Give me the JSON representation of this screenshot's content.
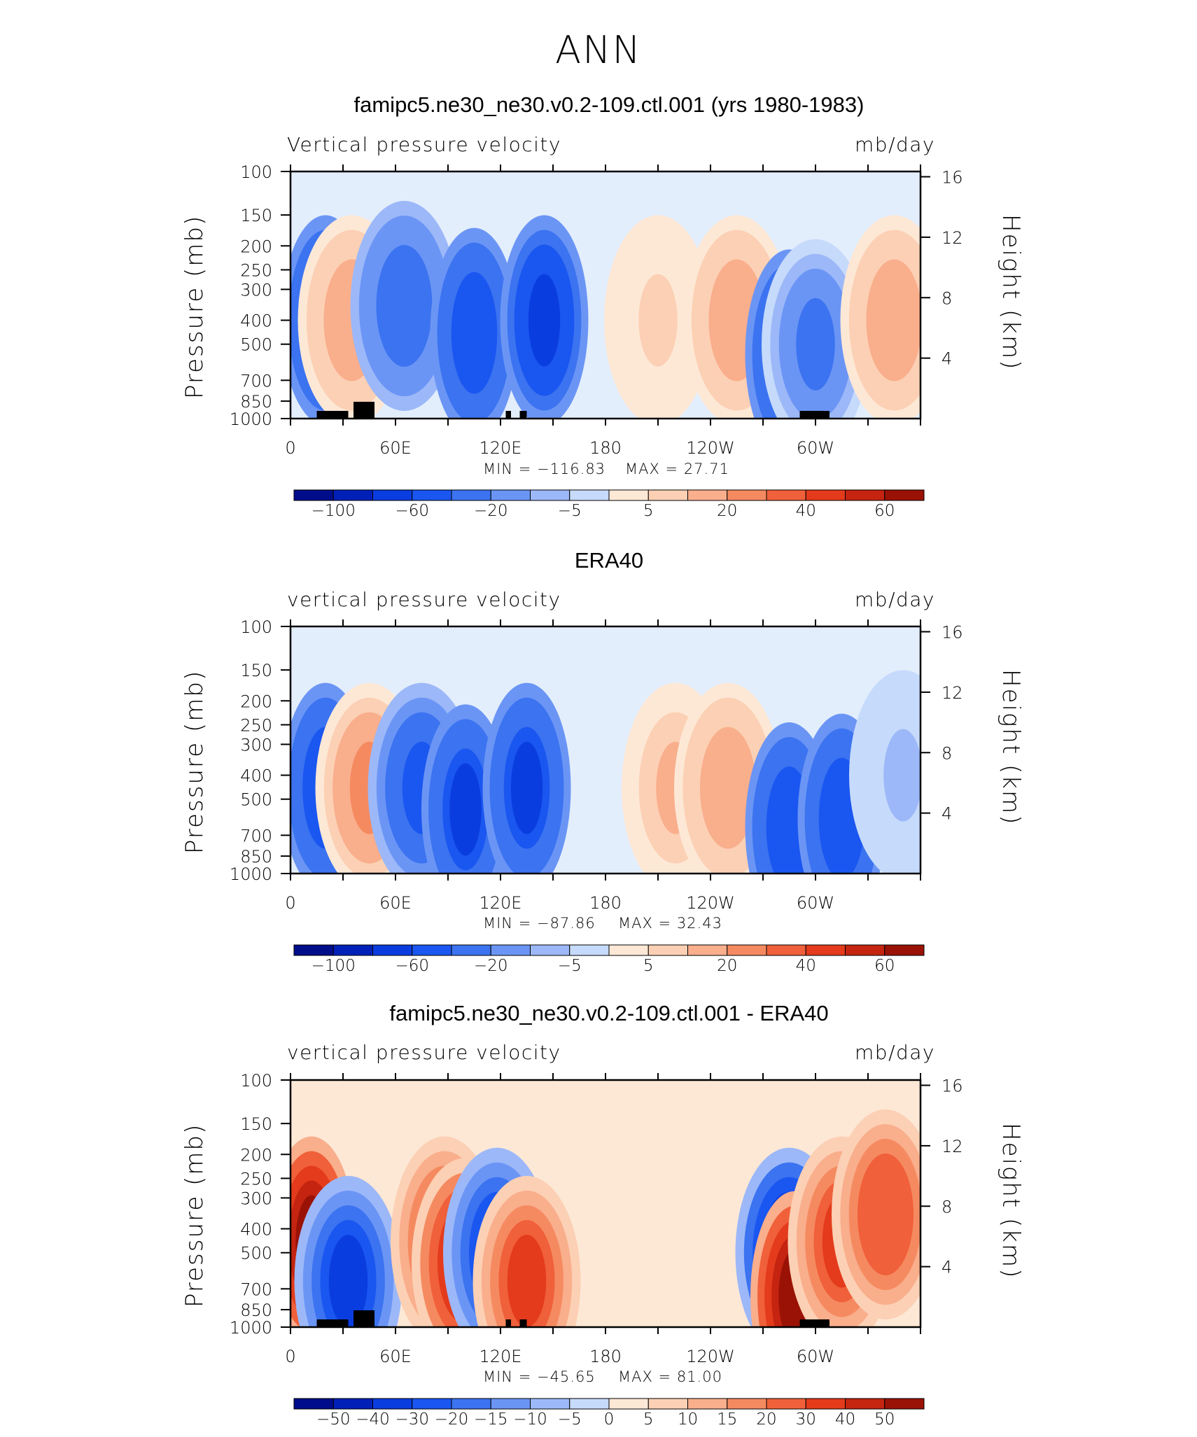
{
  "figure": {
    "title": "ANN"
  },
  "chart_data": [
    {
      "type": "heatmap",
      "title": "famipc5.ne30_ne30.v0.2-109.ctl.001 (yrs 1980-1983)",
      "left_string": "Vertical pressure velocity",
      "right_string": "mb/day",
      "ylabel": "Pressure (mb)",
      "ylabel_right": "Height (km)",
      "x_ticks": [
        "0",
        "60E",
        "120E",
        "180",
        "120W",
        "60W"
      ],
      "y_ticks": [
        100,
        150,
        200,
        250,
        300,
        400,
        500,
        700,
        850,
        1000
      ],
      "y_ticks_right": [
        16,
        12,
        8,
        4
      ],
      "ylim": [
        1000,
        100
      ],
      "xlim": [
        0,
        360
      ],
      "log_pressure": true,
      "min_label": "MIN = −116.83",
      "max_label": "MAX = 27.71",
      "colorbar_labels": [
        "−100",
        "−60",
        "−20",
        "−5",
        "5",
        "20",
        "40",
        "60"
      ],
      "levels": [
        -100,
        -80,
        -60,
        -40,
        -20,
        -10,
        -5,
        0,
        5,
        10,
        20,
        30,
        40,
        50,
        60
      ],
      "features": [
        {
          "lon": 20,
          "p": 400,
          "value": -60
        },
        {
          "lon": 35,
          "p": 400,
          "value": 15
        },
        {
          "lon": 65,
          "p": 350,
          "value": -30
        },
        {
          "lon": 105,
          "p": 450,
          "value": -50
        },
        {
          "lon": 145,
          "p": 400,
          "value": -70
        },
        {
          "lon": 210,
          "p": 400,
          "value": 5
        },
        {
          "lon": 255,
          "p": 400,
          "value": 15
        },
        {
          "lon": 285,
          "p": 550,
          "value": -50
        },
        {
          "lon": 300,
          "p": 500,
          "value": -20
        },
        {
          "lon": 345,
          "p": 400,
          "value": 15
        }
      ]
    },
    {
      "type": "heatmap",
      "title": "ERA40",
      "left_string": "vertical pressure velocity",
      "right_string": "mb/day",
      "ylabel": "Pressure (mb)",
      "ylabel_right": "Height (km)",
      "x_ticks": [
        "0",
        "60E",
        "120E",
        "180",
        "120W",
        "60W"
      ],
      "y_ticks": [
        100,
        150,
        200,
        250,
        300,
        400,
        500,
        700,
        850,
        1000
      ],
      "y_ticks_right": [
        16,
        12,
        8,
        4
      ],
      "ylim": [
        1000,
        100
      ],
      "xlim": [
        0,
        360
      ],
      "log_pressure": true,
      "min_label": "MIN = −87.86",
      "max_label": "MAX = 32.43",
      "colorbar_labels": [
        "−100",
        "−60",
        "−20",
        "−5",
        "5",
        "20",
        "40",
        "60"
      ],
      "levels": [
        -100,
        -80,
        -60,
        -40,
        -20,
        -10,
        -5,
        0,
        5,
        10,
        20,
        30,
        40,
        50,
        60
      ],
      "features": [
        {
          "lon": 20,
          "p": 450,
          "value": -55
        },
        {
          "lon": 45,
          "p": 450,
          "value": 20
        },
        {
          "lon": 75,
          "p": 450,
          "value": -40
        },
        {
          "lon": 100,
          "p": 550,
          "value": -60
        },
        {
          "lon": 135,
          "p": 450,
          "value": -60
        },
        {
          "lon": 220,
          "p": 450,
          "value": 10
        },
        {
          "lon": 250,
          "p": 450,
          "value": 15
        },
        {
          "lon": 285,
          "p": 650,
          "value": -50
        },
        {
          "lon": 315,
          "p": 600,
          "value": -50
        },
        {
          "lon": 350,
          "p": 400,
          "value": -5
        }
      ]
    },
    {
      "type": "heatmap",
      "title": "famipc5.ne30_ne30.v0.2-109.ctl.001 - ERA40",
      "left_string": "vertical pressure velocity",
      "right_string": "mb/day",
      "ylabel": "Pressure (mb)",
      "ylabel_right": "Height (km)",
      "x_ticks": [
        "0",
        "60E",
        "120E",
        "180",
        "120W",
        "60W"
      ],
      "y_ticks": [
        100,
        150,
        200,
        250,
        300,
        400,
        500,
        700,
        850,
        1000
      ],
      "y_ticks_right": [
        16,
        12,
        8,
        4
      ],
      "ylim": [
        1000,
        100
      ],
      "xlim": [
        0,
        360
      ],
      "log_pressure": true,
      "min_label": "MIN = −45.65",
      "max_label": "MAX = 81.00",
      "colorbar_labels": [
        "−50",
        "−40",
        "−30",
        "−20",
        "−15",
        "−10",
        "−5",
        "0",
        "5",
        "10",
        "15",
        "20",
        "30",
        "40",
        "50"
      ],
      "levels": [
        -50,
        -40,
        -30,
        -20,
        -15,
        -10,
        -5,
        0,
        5,
        10,
        15,
        20,
        30,
        40,
        50
      ],
      "features": [
        {
          "lon": 12,
          "p": 450,
          "value": 50
        },
        {
          "lon": 33,
          "p": 650,
          "value": -30
        },
        {
          "lon": 88,
          "p": 450,
          "value": 30
        },
        {
          "lon": 100,
          "p": 550,
          "value": 40
        },
        {
          "lon": 118,
          "p": 500,
          "value": -30
        },
        {
          "lon": 135,
          "p": 650,
          "value": 30
        },
        {
          "lon": 285,
          "p": 500,
          "value": -40
        },
        {
          "lon": 288,
          "p": 750,
          "value": 50
        },
        {
          "lon": 315,
          "p": 450,
          "value": 30
        },
        {
          "lon": 340,
          "p": 350,
          "value": 25
        }
      ]
    }
  ],
  "colors": {
    "blue_scale": [
      "#000d8a",
      "#0020b8",
      "#0a3de0",
      "#1a56f0",
      "#3b73f0",
      "#6b95f5",
      "#9cb8f8",
      "#c6dafb",
      "#e3eefc"
    ],
    "red_scale": [
      "#fde8d6",
      "#fcd0b4",
      "#f9ae8c",
      "#f58a60",
      "#f0603a",
      "#e33b1c",
      "#c42410",
      "#9a1206",
      "#6d0400"
    ],
    "colorbar_blue": [
      "#000d8a",
      "#0020b8",
      "#0a3de0",
      "#1a56f0",
      "#3b73f0",
      "#6b95f5",
      "#9cb8f8",
      "#c6dafb"
    ],
    "colorbar_red": [
      "#fde8d6",
      "#fcd0b4",
      "#f9ae8c",
      "#f58a60",
      "#f0603a",
      "#e33b1c",
      "#c42410",
      "#9a1206"
    ]
  }
}
